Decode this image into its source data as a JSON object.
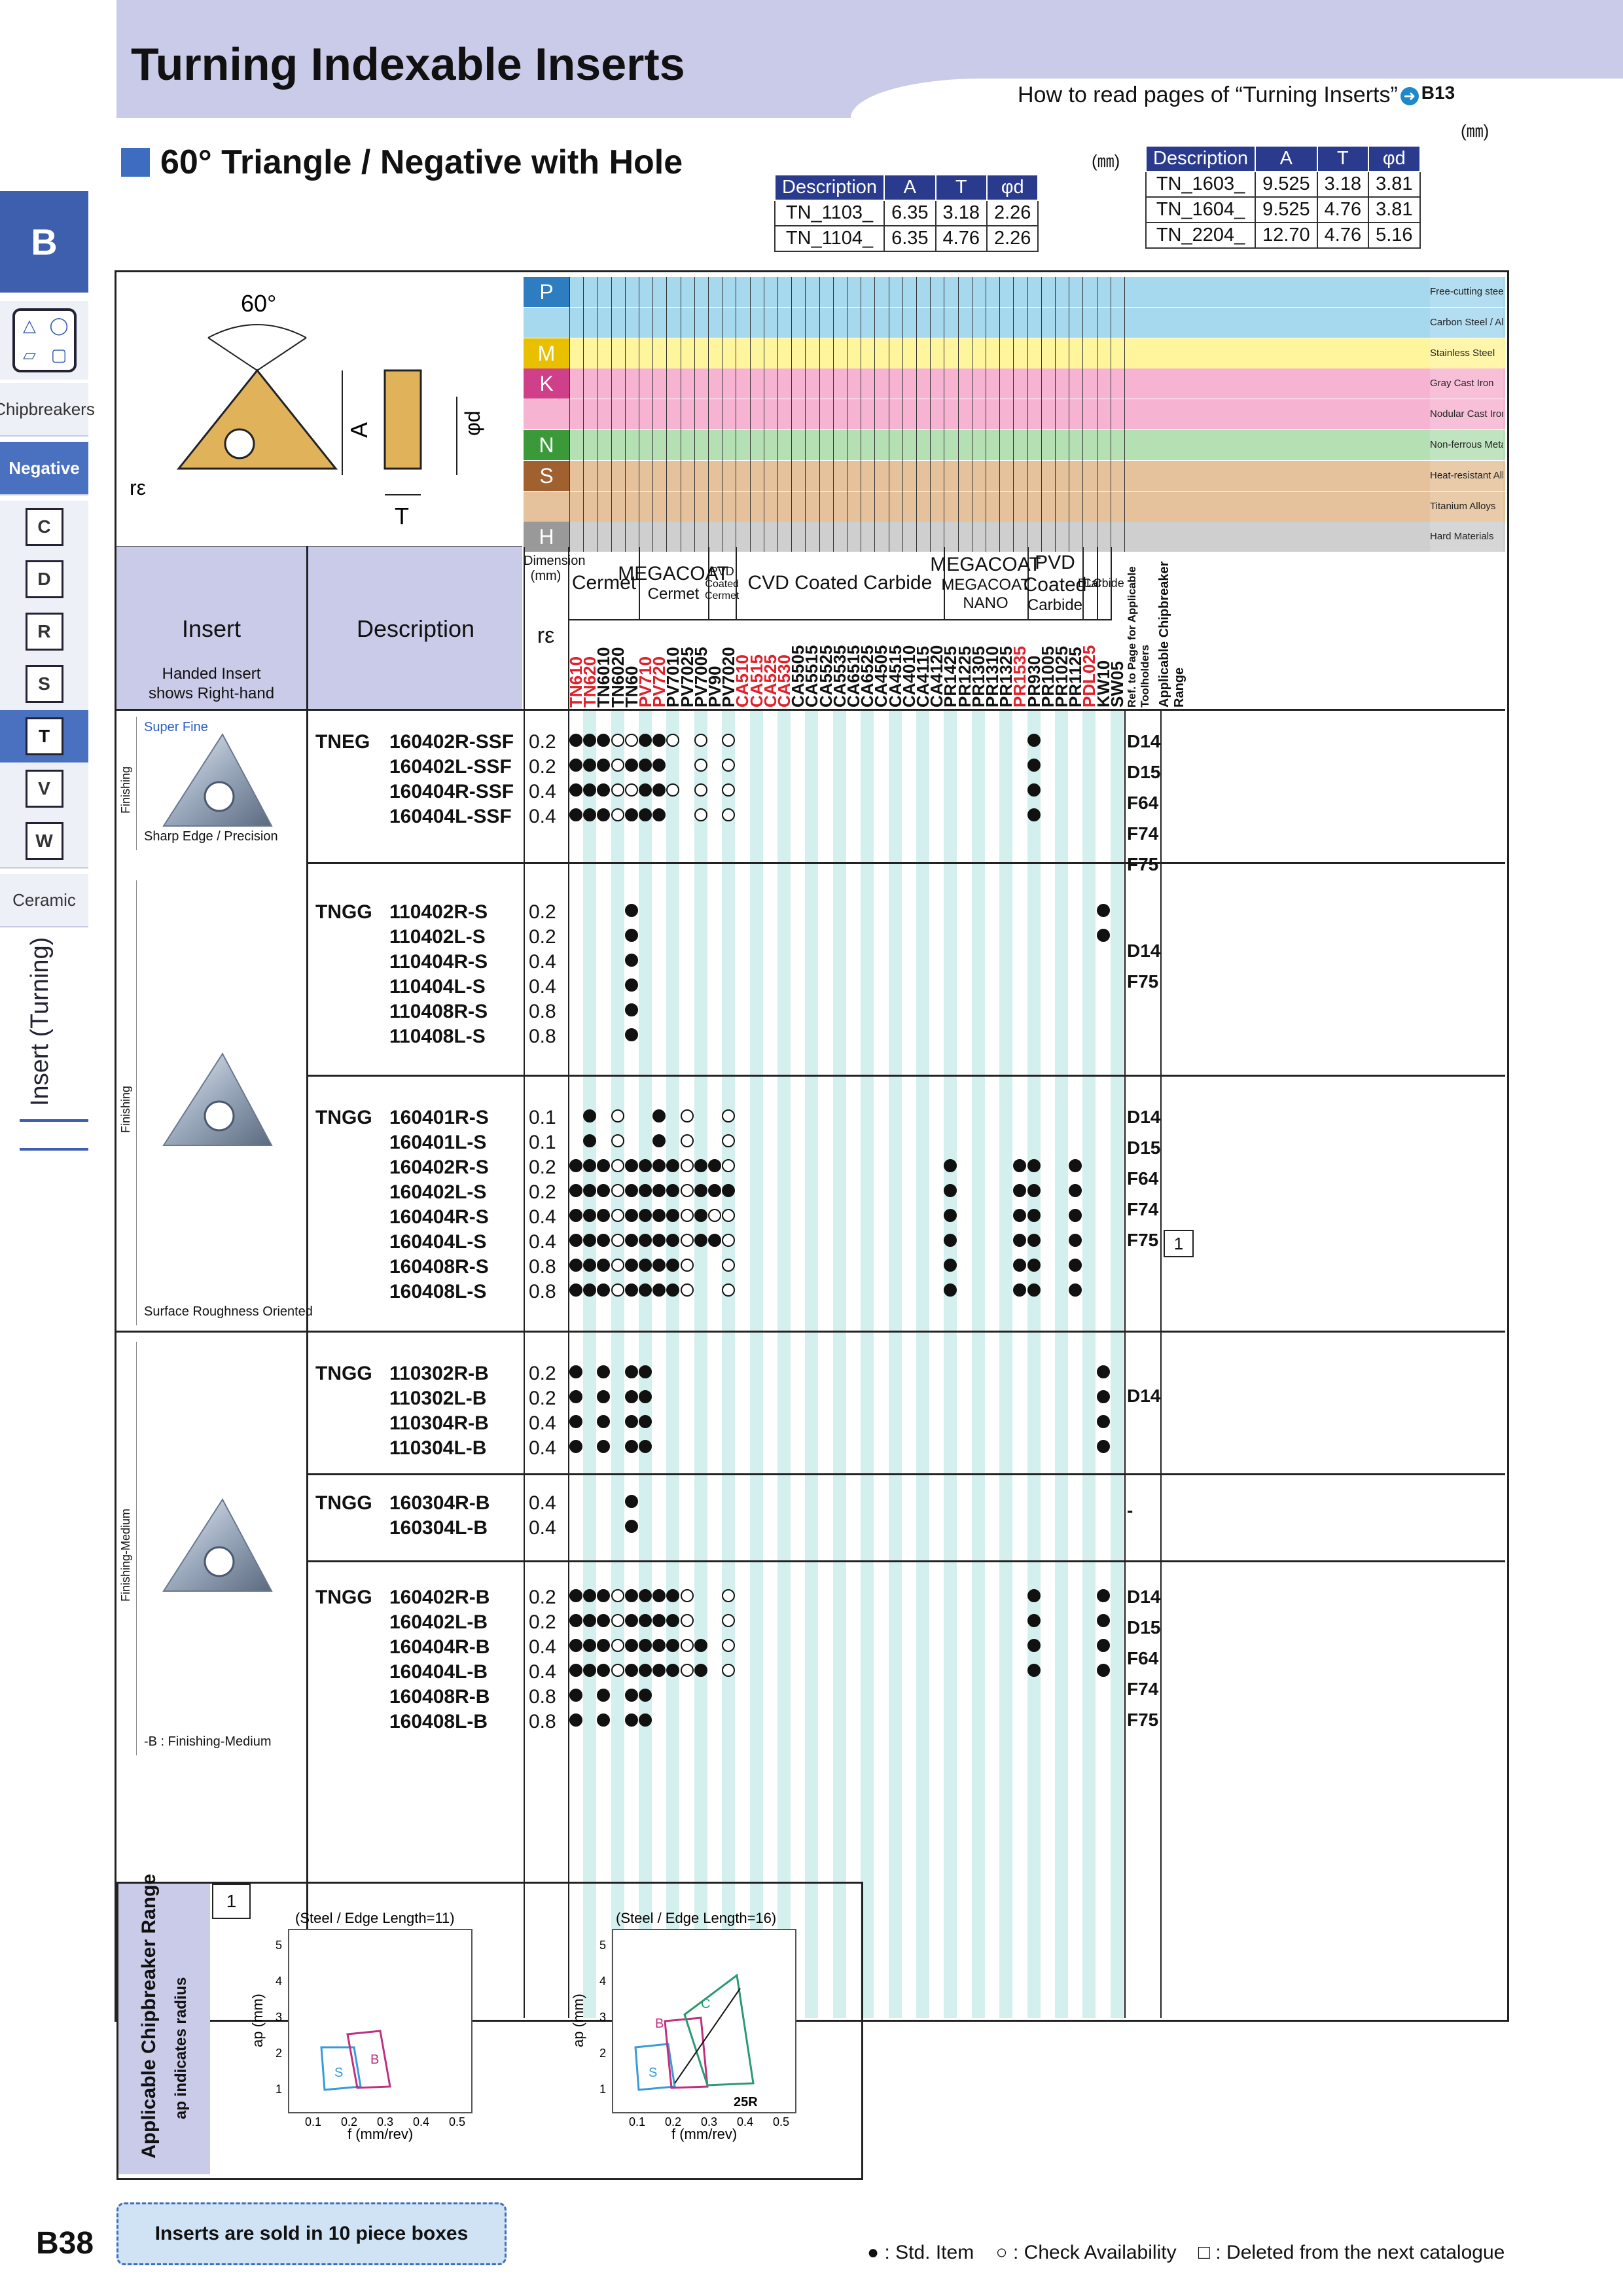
{
  "header": {
    "title": "Turning Indexable Inserts",
    "howto_text": "How to read pages of “Turning Inserts”",
    "howto_ref": "B13"
  },
  "sidebar": {
    "section_letter": "B",
    "chipbreakers_label": "Chipbreakers",
    "negative_label": "Negative",
    "shapes": [
      "C",
      "D",
      "R",
      "S",
      "T",
      "V",
      "W"
    ],
    "ceramic_label": "Ceramic",
    "vertical_label": "Insert (Turning)"
  },
  "subtitle": "60° Triangle / Negative with Hole",
  "dim_unit": "(㎜)",
  "dim_table_left": {
    "headers": [
      "Description",
      "A",
      "T",
      "φd"
    ],
    "rows": [
      [
        "TN_1103_",
        "6.35",
        "3.18",
        "2.26"
      ],
      [
        "TN_1104_",
        "6.35",
        "4.76",
        "2.26"
      ]
    ]
  },
  "dim_table_right": {
    "headers": [
      "Description",
      "A",
      "T",
      "φd"
    ],
    "rows": [
      [
        "TN_1603_",
        "9.525",
        "3.18",
        "3.81"
      ],
      [
        "TN_1604_",
        "9.525",
        "4.76",
        "3.81"
      ],
      [
        "TN_2204_",
        "12.70",
        "4.76",
        "5.16"
      ]
    ]
  },
  "diagram": {
    "angle": "60°",
    "label_A": "A",
    "label_T": "T",
    "label_d": "φd",
    "label_re": "rε"
  },
  "materials": [
    {
      "code": "P",
      "name": "Free-cutting steel",
      "color": "#a6d8ee"
    },
    {
      "code": "",
      "name": "Carbon Steel / Alloy Steel",
      "color": "#a6d8ee"
    },
    {
      "code": "M",
      "name": "Stainless Steel",
      "color": "#fff59d"
    },
    {
      "code": "K",
      "name": "Gray Cast Iron",
      "color": "#f6b4d2"
    },
    {
      "code": "",
      "name": "Nodular Cast Iron",
      "color": "#f6b4d2"
    },
    {
      "code": "N",
      "name": "Non-ferrous Metals",
      "color": "#b4e0b4"
    },
    {
      "code": "S",
      "name": "Heat-resistant Alloys",
      "color": "#e6c29c"
    },
    {
      "code": "",
      "name": "Titanium Alloys",
      "color": "#e6c29c"
    },
    {
      "code": "H",
      "name": "Hard Materials",
      "color": "#cfcfcf"
    }
  ],
  "table_header": {
    "insert": "Insert",
    "insert_sub1": "Handed Insert",
    "insert_sub2": "shows Right-hand",
    "description": "Description",
    "dimension": "Dimension",
    "dimension_unit": "(mm)",
    "re": "rε",
    "groups": [
      {
        "line1": "Cermet",
        "line2": ""
      },
      {
        "line1": "MEGACOAT",
        "line2": "Cermet"
      },
      {
        "line1": "PVD",
        "line2": "Coated Cermet"
      },
      {
        "line1": "CVD Coated Carbide",
        "line2": ""
      },
      {
        "line1": "MEGACOAT",
        "line2": "MEGACOAT NANO"
      },
      {
        "line1": "PVD Coated",
        "line2": "Carbide"
      },
      {
        "line1": "DLC",
        "line2": ""
      },
      {
        "line1": "Carbide",
        "line2": ""
      }
    ],
    "ref_label": "Ref. to Page for Applicable Toolholders",
    "chip_label": "Applicable Chipbreaker Range"
  },
  "grades": [
    {
      "name": "TN610",
      "red": true
    },
    {
      "name": "TN620",
      "red": true
    },
    {
      "name": "TN6010",
      "red": false
    },
    {
      "name": "TN6020",
      "red": false
    },
    {
      "name": "TN60",
      "red": false
    },
    {
      "name": "PV710",
      "red": true
    },
    {
      "name": "PV720",
      "red": true
    },
    {
      "name": "PV7010",
      "red": false
    },
    {
      "name": "PV7025",
      "red": false
    },
    {
      "name": "PV7005",
      "red": false
    },
    {
      "name": "PV90",
      "red": false
    },
    {
      "name": "PV7020",
      "red": false
    },
    {
      "name": "CA510",
      "red": true
    },
    {
      "name": "CA515",
      "red": true
    },
    {
      "name": "CA525",
      "red": true
    },
    {
      "name": "CA530",
      "red": true
    },
    {
      "name": "CA5505",
      "red": false
    },
    {
      "name": "CA5515",
      "red": false
    },
    {
      "name": "CA5525",
      "red": false
    },
    {
      "name": "CA5535",
      "red": false
    },
    {
      "name": "CA6515",
      "red": false
    },
    {
      "name": "CA6525",
      "red": false
    },
    {
      "name": "CA4505",
      "red": false
    },
    {
      "name": "CA4515",
      "red": false
    },
    {
      "name": "CA4010",
      "red": false
    },
    {
      "name": "CA4115",
      "red": false
    },
    {
      "name": "CA4120",
      "red": false
    },
    {
      "name": "PR1425",
      "red": false
    },
    {
      "name": "PR1225",
      "red": false
    },
    {
      "name": "PR1305",
      "red": false
    },
    {
      "name": "PR1310",
      "red": false
    },
    {
      "name": "PR1325",
      "red": false
    },
    {
      "name": "PR1535",
      "red": true
    },
    {
      "name": "PR930",
      "red": false
    },
    {
      "name": "PR1005",
      "red": false
    },
    {
      "name": "PR1025",
      "red": false
    },
    {
      "name": "PR1125",
      "red": false
    },
    {
      "name": "PDL025",
      "red": true
    },
    {
      "name": "KW10",
      "red": false
    },
    {
      "name": "SW05",
      "red": false
    }
  ],
  "sections": [
    {
      "label": "Finishing",
      "chip_name": "Super Fine",
      "caption": "Sharp Edge / Precision"
    },
    {
      "label": "Finishing",
      "chip_name": "",
      "caption": "Surface Roughness Oriented"
    },
    {
      "label": "Finishing-Medium",
      "chip_name": "",
      "caption": "-B : Finishing-Medium"
    }
  ],
  "rows": [
    {
      "prefix": "TNEG",
      "code": "160402R-SSF",
      "re": "0.2",
      "f": [
        0,
        1,
        2,
        5,
        6,
        33
      ],
      "o": [
        3,
        4,
        7,
        9,
        11
      ]
    },
    {
      "prefix": "",
      "code": "160402L-SSF",
      "re": "0.2",
      "f": [
        0,
        1,
        2,
        4,
        5,
        6,
        33
      ],
      "o": [
        3,
        9,
        11
      ]
    },
    {
      "prefix": "",
      "code": "160404R-SSF",
      "re": "0.4",
      "f": [
        0,
        1,
        2,
        5,
        6,
        33
      ],
      "o": [
        3,
        4,
        7,
        9,
        11
      ]
    },
    {
      "prefix": "",
      "code": "160404L-SSF",
      "re": "0.4",
      "f": [
        0,
        1,
        2,
        4,
        5,
        6,
        33
      ],
      "o": [
        3,
        9,
        11
      ]
    },
    {
      "prefix": "TNGG",
      "code": "110402R-S",
      "re": "0.2",
      "f": [
        4,
        38
      ],
      "o": []
    },
    {
      "prefix": "",
      "code": "110402L-S",
      "re": "0.2",
      "f": [
        4,
        38
      ],
      "o": []
    },
    {
      "prefix": "",
      "code": "110404R-S",
      "re": "0.4",
      "f": [
        4
      ],
      "o": []
    },
    {
      "prefix": "",
      "code": "110404L-S",
      "re": "0.4",
      "f": [
        4
      ],
      "o": []
    },
    {
      "prefix": "",
      "code": "110408R-S",
      "re": "0.8",
      "f": [
        4
      ],
      "o": []
    },
    {
      "prefix": "",
      "code": "110408L-S",
      "re": "0.8",
      "f": [
        4
      ],
      "o": []
    },
    {
      "prefix": "TNGG",
      "code": "160401R-S",
      "re": "0.1",
      "f": [
        1,
        6
      ],
      "o": [
        3,
        8,
        11
      ]
    },
    {
      "prefix": "",
      "code": "160401L-S",
      "re": "0.1",
      "f": [
        1,
        6
      ],
      "o": [
        3,
        8,
        11
      ]
    },
    {
      "prefix": "",
      "code": "160402R-S",
      "re": "0.2",
      "f": [
        0,
        1,
        2,
        4,
        5,
        6,
        7,
        9,
        10,
        27,
        32,
        33,
        36
      ],
      "o": [
        3,
        8,
        11
      ]
    },
    {
      "prefix": "",
      "code": "160402L-S",
      "re": "0.2",
      "f": [
        0,
        1,
        2,
        4,
        5,
        6,
        7,
        9,
        10,
        11,
        27,
        32,
        33,
        36
      ],
      "o": [
        3,
        8
      ]
    },
    {
      "prefix": "",
      "code": "160404R-S",
      "re": "0.4",
      "f": [
        0,
        1,
        2,
        4,
        5,
        6,
        7,
        9,
        27,
        32,
        33,
        36
      ],
      "o": [
        3,
        8,
        10,
        11
      ]
    },
    {
      "prefix": "",
      "code": "160404L-S",
      "re": "0.4",
      "f": [
        0,
        1,
        2,
        4,
        5,
        6,
        7,
        9,
        10,
        27,
        32,
        33,
        36
      ],
      "o": [
        3,
        8,
        11
      ]
    },
    {
      "prefix": "",
      "code": "160408R-S",
      "re": "0.8",
      "f": [
        0,
        1,
        2,
        4,
        5,
        6,
        7,
        27,
        32,
        33,
        36
      ],
      "o": [
        3,
        8,
        11
      ]
    },
    {
      "prefix": "",
      "code": "160408L-S",
      "re": "0.8",
      "f": [
        0,
        1,
        2,
        4,
        5,
        6,
        7,
        27,
        32,
        33,
        36
      ],
      "o": [
        3,
        8,
        11
      ]
    },
    {
      "prefix": "TNGG",
      "code": "110302R-B",
      "re": "0.2",
      "f": [
        0,
        2,
        4,
        5,
        38
      ],
      "o": []
    },
    {
      "prefix": "",
      "code": "110302L-B",
      "re": "0.2",
      "f": [
        0,
        2,
        4,
        5,
        38
      ],
      "o": []
    },
    {
      "prefix": "",
      "code": "110304R-B",
      "re": "0.4",
      "f": [
        0,
        2,
        4,
        5,
        38
      ],
      "o": []
    },
    {
      "prefix": "",
      "code": "110304L-B",
      "re": "0.4",
      "f": [
        0,
        2,
        4,
        5,
        38
      ],
      "o": []
    },
    {
      "prefix": "TNGG",
      "code": "160304R-B",
      "re": "0.4",
      "f": [
        4
      ],
      "o": []
    },
    {
      "prefix": "",
      "code": "160304L-B",
      "re": "0.4",
      "f": [
        4
      ],
      "o": []
    },
    {
      "prefix": "TNGG",
      "code": "160402R-B",
      "re": "0.2",
      "f": [
        0,
        1,
        2,
        4,
        5,
        6,
        7,
        33,
        38
      ],
      "o": [
        3,
        8,
        11
      ]
    },
    {
      "prefix": "",
      "code": "160402L-B",
      "re": "0.2",
      "f": [
        0,
        1,
        2,
        4,
        5,
        6,
        7,
        33,
        38
      ],
      "o": [
        3,
        8,
        11
      ]
    },
    {
      "prefix": "",
      "code": "160404R-B",
      "re": "0.4",
      "f": [
        0,
        1,
        2,
        4,
        5,
        6,
        7,
        9,
        33,
        38
      ],
      "o": [
        3,
        8,
        11
      ]
    },
    {
      "prefix": "",
      "code": "160404L-B",
      "re": "0.4",
      "f": [
        0,
        1,
        2,
        4,
        5,
        6,
        7,
        9,
        33,
        38
      ],
      "o": [
        3,
        8,
        11
      ]
    },
    {
      "prefix": "",
      "code": "160408R-B",
      "re": "0.8",
      "f": [
        0,
        2,
        4,
        5
      ],
      "o": []
    },
    {
      "prefix": "",
      "code": "160408L-B",
      "re": "0.8",
      "f": [
        0,
        2,
        4,
        5
      ],
      "o": []
    }
  ],
  "refs": [
    {
      "group": 0,
      "values": [
        "D14",
        "D15",
        "F64",
        "F74",
        "F75"
      ]
    },
    {
      "group": 1,
      "values": [
        "D14",
        "F75"
      ]
    },
    {
      "group": 2,
      "values": [
        "D14",
        "D15",
        "F64",
        "F74",
        "F75"
      ]
    },
    {
      "group": 3,
      "values": [
        "D14"
      ]
    },
    {
      "group": 4,
      "values": [
        "-"
      ]
    },
    {
      "group": 5,
      "values": [
        "D14",
        "D15",
        "F64",
        "F74",
        "F75"
      ]
    }
  ],
  "chip_range_ref": "1",
  "chipbreaker_box": {
    "title": "Applicable Chipbreaker Range",
    "subtitle": "ap indicates radius",
    "index": "1",
    "charts": [
      {
        "title": "(Steel / Edge Length=11)",
        "xlabel": "f (mm/rev)",
        "ylabel": "ap (mm)",
        "regions": [
          "S",
          "B"
        ]
      },
      {
        "title": "(Steel / Edge Length=16)",
        "xlabel": "f (mm/rev)",
        "ylabel": "ap (mm)",
        "regions": [
          "S",
          "B",
          "C"
        ],
        "note": "25R"
      }
    ],
    "x_ticks": [
      "0.1",
      "0.2",
      "0.3",
      "0.4",
      "0.5"
    ],
    "y_ticks": [
      "1",
      "2",
      "3",
      "4",
      "5"
    ]
  },
  "footer": {
    "sold": "Inserts are sold in 10 piece boxes",
    "page": "B38",
    "legend_std": ": Std. Item",
    "legend_check": ": Check Availability",
    "legend_deleted": ": Deleted from the next catalogue"
  }
}
